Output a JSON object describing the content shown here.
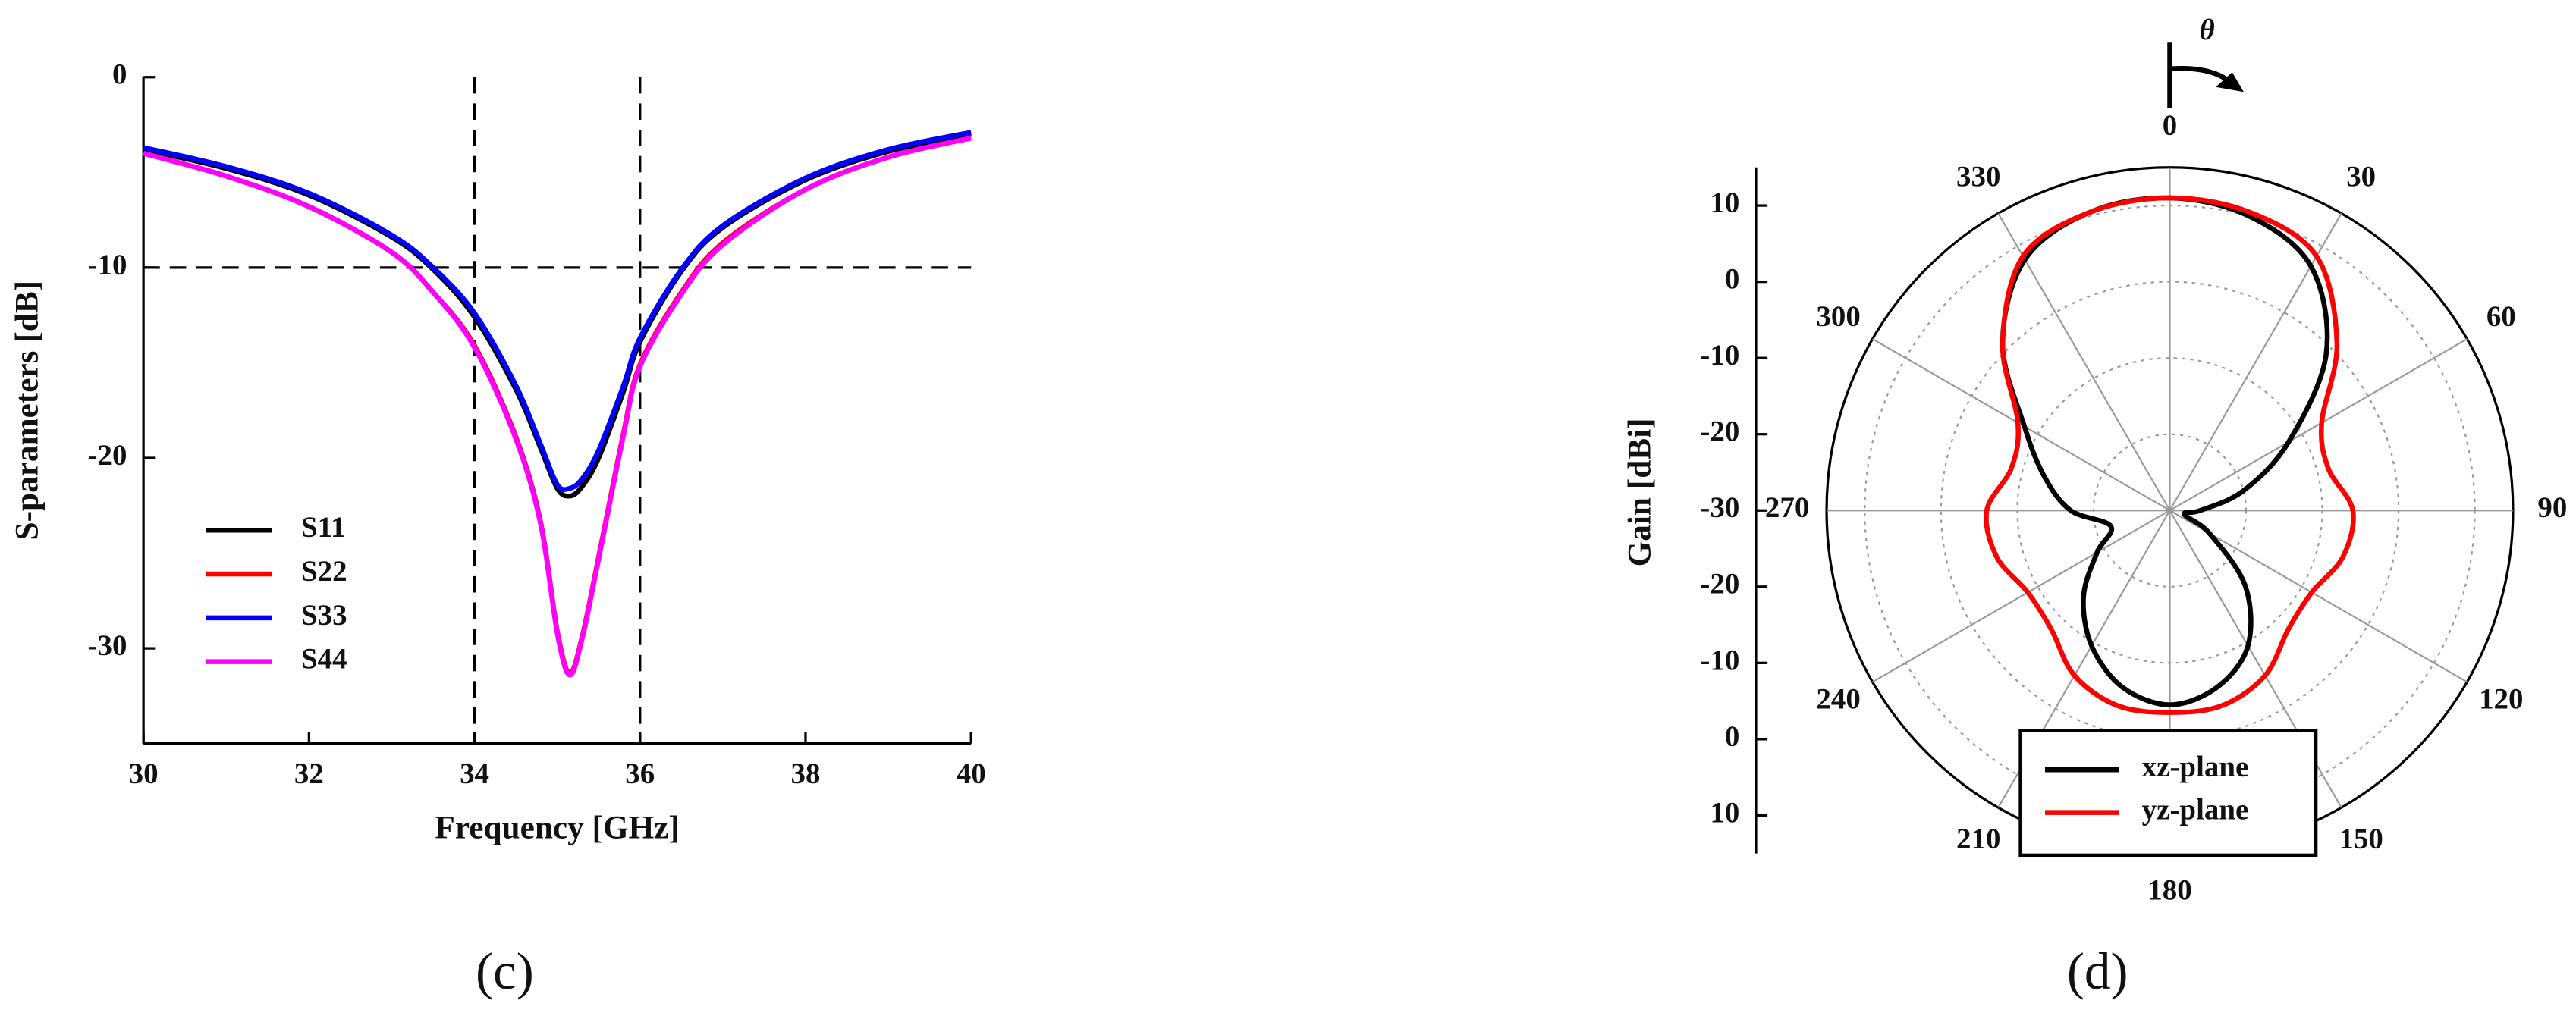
{
  "chart_data": [
    {
      "type": "line",
      "panel_label": "(c)",
      "x_label": "Frequency [GHz]",
      "y_label": "S-parameters [dB]",
      "x": [
        30,
        31,
        32,
        33,
        33.5,
        34,
        34.5,
        34.8,
        35,
        35.15,
        35.3,
        35.5,
        35.8,
        36,
        36.5,
        37,
        38,
        39,
        40
      ],
      "series": [
        {
          "name": "S11",
          "color": "#000000",
          "values": [
            -3.8,
            -4.8,
            -6.2,
            -8.4,
            -10.1,
            -12.6,
            -16.4,
            -19.5,
            -21.6,
            -22,
            -21.5,
            -20,
            -16.5,
            -13.9,
            -10.2,
            -7.9,
            -5.4,
            -3.9,
            -3.0
          ]
        },
        {
          "name": "S22",
          "color": "#ff0000",
          "values": [
            -4.0,
            -5.2,
            -6.8,
            -9.2,
            -11.3,
            -14.1,
            -18.9,
            -23.4,
            -29.1,
            -31.3,
            -29.4,
            -25.2,
            -18.7,
            -15.1,
            -11.3,
            -8.7,
            -5.9,
            -4.2,
            -3.2
          ]
        },
        {
          "name": "S33",
          "color": "#0000ff",
          "values": [
            -3.7,
            -4.7,
            -6.1,
            -8.3,
            -10,
            -12.4,
            -16.2,
            -19.3,
            -21.4,
            -21.6,
            -21.1,
            -19.6,
            -16.2,
            -13.7,
            -10.1,
            -7.8,
            -5.3,
            -3.8,
            -2.9
          ]
        },
        {
          "name": "S44",
          "color": "#ff00ff",
          "values": [
            -4.0,
            -5.2,
            -6.8,
            -9.2,
            -11.3,
            -14.2,
            -19,
            -23.5,
            -29.2,
            -31.4,
            -29.5,
            -25.3,
            -18.8,
            -15.2,
            -11.4,
            -8.8,
            -5.9,
            -4.2,
            -3.2
          ]
        }
      ],
      "xlim": [
        30,
        40
      ],
      "xticks": [
        30,
        32,
        34,
        36,
        38,
        40
      ],
      "ylim": [
        -35,
        0
      ],
      "yticks": [
        0,
        -10,
        -20,
        -30
      ],
      "reference_lines": {
        "x": [
          34,
          36
        ],
        "y": [
          -10
        ]
      },
      "legend": "lower left"
    },
    {
      "type": "polar",
      "panel_label": "(d)",
      "r_label": "Gain [dBi]",
      "direction_label": "θ",
      "theta": [
        0,
        15,
        30,
        45,
        60,
        75,
        90,
        105,
        120,
        135,
        150,
        165,
        180,
        195,
        210,
        225,
        240,
        255,
        270,
        285,
        300,
        315,
        330,
        345
      ],
      "series": [
        {
          "name": "xz-plane",
          "color": "#000000",
          "values": [
            11,
            10,
            7,
            -1,
            -12,
            -20,
            -26,
            -28,
            -24,
            -16,
            -9.5,
            -6,
            -4.5,
            -6,
            -9.5,
            -14,
            -19,
            -22,
            -17,
            -13,
            -8,
            1,
            8,
            10.5
          ]
        },
        {
          "name": "yz-plane",
          "color": "#ff0000",
          "values": [
            11,
            10.5,
            8.5,
            1,
            -7,
            -8.5,
            -6,
            -6.5,
            -8.5,
            -8,
            -5,
            -3.5,
            -3.5,
            -3.5,
            -5,
            -8,
            -8.5,
            -6.5,
            -6,
            -8.5,
            -7,
            1,
            8.5,
            10.5
          ]
        }
      ],
      "rlim": [
        -30,
        15
      ],
      "rticks": [
        -30,
        -20,
        -10,
        0,
        10
      ],
      "thetaticks": [
        0,
        30,
        60,
        90,
        120,
        150,
        180,
        210,
        240,
        270,
        300,
        330
      ],
      "legend": "lower center"
    }
  ]
}
